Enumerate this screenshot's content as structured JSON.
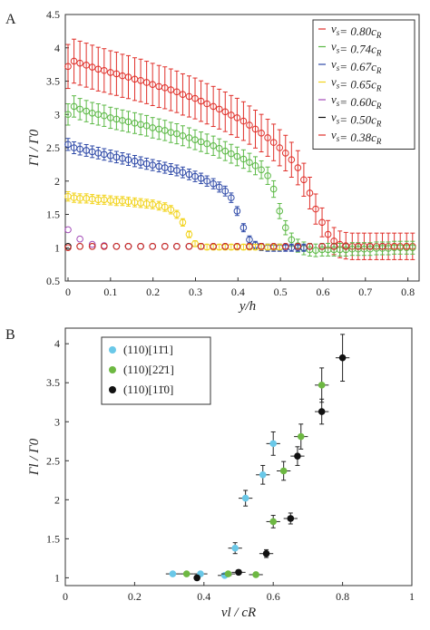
{
  "chart_data": [
    {
      "panel": "A",
      "type": "scatter",
      "xlabel": "y/h",
      "ylabel": "Γl / Γ0",
      "xlim": [
        0,
        0.82
      ],
      "ylim": [
        0.5,
        4.5
      ],
      "xticks": [
        "0",
        "0.1",
        "0.2",
        "0.3",
        "0.4",
        "0.5",
        "0.6",
        "0.7",
        "0.8"
      ],
      "yticks": [
        "0.5",
        "1",
        "1.5",
        "2",
        "2.5",
        "3",
        "3.5",
        "4",
        "4.5"
      ],
      "legend_position": "top-right",
      "series": [
        {
          "name": "vs= 0.80cR",
          "color": "#e0302a",
          "err": 0.33,
          "x": [
            0,
            0.014,
            0.028,
            0.043,
            0.057,
            0.071,
            0.085,
            0.1,
            0.114,
            0.128,
            0.142,
            0.157,
            0.171,
            0.185,
            0.199,
            0.214,
            0.228,
            0.242,
            0.256,
            0.27,
            0.285,
            0.299,
            0.313,
            0.327,
            0.342,
            0.356,
            0.37,
            0.384,
            0.398,
            0.413,
            0.427,
            0.441,
            0.455,
            0.47,
            0.484,
            0.498,
            0.512,
            0.526,
            0.541,
            0.555,
            0.569,
            0.583,
            0.598,
            0.612,
            0.626,
            0.64,
            0.654,
            0.669,
            0.683,
            0.697,
            0.711,
            0.726,
            0.74,
            0.754,
            0.768,
            0.782,
            0.797,
            0.811
          ],
          "y": [
            3.72,
            3.8,
            3.77,
            3.74,
            3.71,
            3.68,
            3.66,
            3.63,
            3.61,
            3.58,
            3.56,
            3.53,
            3.51,
            3.48,
            3.45,
            3.42,
            3.4,
            3.37,
            3.34,
            3.3,
            3.27,
            3.24,
            3.2,
            3.16,
            3.12,
            3.08,
            3.04,
            2.99,
            2.95,
            2.9,
            2.84,
            2.78,
            2.72,
            2.65,
            2.58,
            2.5,
            2.42,
            2.32,
            2.2,
            2.02,
            1.82,
            1.58,
            1.38,
            1.2,
            1.1,
            1.05,
            1.03,
            1.02,
            1.02,
            1.02,
            1.02,
            1.02,
            1.02,
            1.02,
            1.02,
            1.02,
            1.02,
            1.02
          ]
        },
        {
          "name": "vs= 0.74cR",
          "color": "#5cb946",
          "err": 0.16,
          "x": [
            0,
            0.014,
            0.028,
            0.043,
            0.057,
            0.071,
            0.085,
            0.1,
            0.114,
            0.128,
            0.142,
            0.157,
            0.171,
            0.185,
            0.199,
            0.214,
            0.228,
            0.242,
            0.256,
            0.27,
            0.285,
            0.299,
            0.313,
            0.327,
            0.342,
            0.356,
            0.37,
            0.384,
            0.398,
            0.413,
            0.427,
            0.441,
            0.455,
            0.47,
            0.484,
            0.498,
            0.512,
            0.526,
            0.541,
            0.555,
            0.569,
            0.583,
            0.598,
            0.612,
            0.626,
            0.64,
            0.654,
            0.669,
            0.683,
            0.697,
            0.711,
            0.726,
            0.74,
            0.754,
            0.768,
            0.782,
            0.797,
            0.811
          ],
          "y": [
            3.0,
            3.12,
            3.08,
            3.05,
            3.02,
            3.0,
            2.98,
            2.95,
            2.93,
            2.91,
            2.89,
            2.87,
            2.85,
            2.83,
            2.8,
            2.78,
            2.76,
            2.73,
            2.71,
            2.68,
            2.65,
            2.62,
            2.59,
            2.56,
            2.53,
            2.49,
            2.45,
            2.41,
            2.37,
            2.33,
            2.28,
            2.23,
            2.17,
            2.08,
            1.88,
            1.55,
            1.3,
            1.12,
            1.03,
            0.99,
            0.97,
            0.96,
            0.97,
            0.97,
            0.97,
            0.97,
            0.97,
            0.98,
            0.98,
            0.98,
            0.98,
            0.99,
            0.99,
            0.99,
            1.0,
            1.0,
            1.0,
            1.0
          ]
        },
        {
          "name": "vs= 0.67cR",
          "color": "#2f4aa8",
          "err": 0.09,
          "x": [
            0,
            0.014,
            0.028,
            0.043,
            0.057,
            0.071,
            0.085,
            0.1,
            0.114,
            0.128,
            0.142,
            0.157,
            0.171,
            0.185,
            0.199,
            0.214,
            0.228,
            0.242,
            0.256,
            0.27,
            0.285,
            0.299,
            0.313,
            0.327,
            0.342,
            0.356,
            0.37,
            0.384,
            0.398,
            0.413,
            0.427,
            0.441,
            0.455,
            0.47,
            0.484,
            0.498,
            0.512,
            0.526,
            0.541,
            0.555
          ],
          "y": [
            2.55,
            2.5,
            2.48,
            2.46,
            2.44,
            2.42,
            2.4,
            2.38,
            2.36,
            2.34,
            2.32,
            2.3,
            2.28,
            2.26,
            2.24,
            2.22,
            2.2,
            2.18,
            2.16,
            2.13,
            2.1,
            2.07,
            2.04,
            2.0,
            1.96,
            1.91,
            1.85,
            1.75,
            1.55,
            1.3,
            1.12,
            1.04,
            1.01,
            1.0,
            1.0,
            1.0,
            1.0,
            1.0,
            1.0,
            1.0
          ]
        },
        {
          "name": "vs= 0.65cR",
          "color": "#f2d31b",
          "err": 0.07,
          "x": [
            0,
            0.014,
            0.028,
            0.043,
            0.057,
            0.071,
            0.085,
            0.1,
            0.114,
            0.128,
            0.142,
            0.157,
            0.171,
            0.185,
            0.199,
            0.214,
            0.228,
            0.242,
            0.256,
            0.27,
            0.285,
            0.299,
            0.313,
            0.327,
            0.342,
            0.356,
            0.37,
            0.384,
            0.398,
            0.413,
            0.427,
            0.441,
            0.455,
            0.47,
            0.484,
            0.498
          ],
          "y": [
            1.77,
            1.75,
            1.74,
            1.74,
            1.73,
            1.72,
            1.72,
            1.71,
            1.7,
            1.7,
            1.69,
            1.68,
            1.67,
            1.66,
            1.65,
            1.63,
            1.61,
            1.57,
            1.5,
            1.38,
            1.2,
            1.06,
            1.02,
            1.01,
            1.01,
            1.01,
            1.01,
            1.01,
            1.01,
            1.01,
            1.01,
            1.01,
            1.01,
            1.01,
            1.01,
            1.01
          ]
        },
        {
          "name": "vs= 0.60cR",
          "color": "#a24ab6",
          "err": 0.0,
          "x": [
            0,
            0.028,
            0.057,
            0.085,
            0.114,
            0.142,
            0.171,
            0.199,
            0.228,
            0.256,
            0.285,
            0.313,
            0.342,
            0.37,
            0.398,
            0.427,
            0.455,
            0.484,
            0.512,
            0.541,
            0.569,
            0.598,
            0.626,
            0.654
          ],
          "y": [
            1.27,
            1.13,
            1.05,
            1.03,
            1.02,
            1.02,
            1.02,
            1.02,
            1.02,
            1.02,
            1.02,
            1.02,
            1.02,
            1.02,
            1.02,
            1.02,
            1.02,
            1.02,
            1.02,
            1.02,
            1.02,
            1.02,
            1.02,
            1.02
          ]
        },
        {
          "name": "vs= 0.50cR",
          "color": "#111111",
          "err": 0.0,
          "x": [
            0,
            0.028,
            0.057,
            0.085,
            0.114,
            0.142,
            0.171,
            0.199,
            0.228,
            0.256,
            0.285,
            0.313,
            0.342,
            0.37,
            0.398,
            0.427,
            0.455,
            0.484,
            0.512,
            0.541,
            0.569,
            0.598,
            0.626,
            0.654,
            0.683,
            0.711,
            0.74
          ],
          "y": [
            1.02,
            1.02,
            1.02,
            1.02,
            1.02,
            1.02,
            1.02,
            1.02,
            1.02,
            1.02,
            1.02,
            1.02,
            1.02,
            1.02,
            1.02,
            1.02,
            1.02,
            1.02,
            1.02,
            1.02,
            1.02,
            1.02,
            1.02,
            1.02,
            1.02,
            1.02,
            1.02
          ]
        },
        {
          "name": "vs= 0.38cR",
          "color": "#e0302a",
          "err": 0.0,
          "x": [
            0,
            0.028,
            0.057,
            0.085,
            0.114,
            0.142,
            0.171,
            0.199,
            0.228,
            0.256,
            0.285,
            0.313,
            0.342,
            0.37,
            0.398,
            0.427,
            0.455,
            0.484,
            0.512,
            0.541,
            0.569,
            0.598,
            0.626,
            0.654,
            0.683,
            0.711,
            0.74,
            0.768,
            0.797
          ],
          "y": [
            1.0,
            1.02,
            1.02,
            1.02,
            1.02,
            1.02,
            1.02,
            1.02,
            1.02,
            1.02,
            1.02,
            1.02,
            1.02,
            1.02,
            1.02,
            1.02,
            1.02,
            1.02,
            1.02,
            1.02,
            1.02,
            1.02,
            1.02,
            1.02,
            1.02,
            1.02,
            1.02,
            1.02,
            1.02
          ]
        }
      ]
    },
    {
      "panel": "B",
      "type": "scatter",
      "xlabel": "vl / cR",
      "ylabel": "Γl / Γ0",
      "xlim": [
        0,
        1
      ],
      "ylim": [
        0.9,
        4.2
      ],
      "xticks": [
        "0",
        "0.2",
        "0.4",
        "0.6",
        "0.8",
        "1"
      ],
      "yticks": [
        "1",
        "1.5",
        "2",
        "2.5",
        "3",
        "3.5",
        "4"
      ],
      "legend_position": "top-left",
      "series": [
        {
          "name": "(110)[11̄1]",
          "color": "#6ac8e8",
          "points": [
            {
              "x": 0.31,
              "y": 1.05,
              "ex": 0.02,
              "ey": 0.02
            },
            {
              "x": 0.39,
              "y": 1.05,
              "ex": 0.02,
              "ey": 0.02
            },
            {
              "x": 0.46,
              "y": 1.03,
              "ex": 0.02,
              "ey": 0.02
            },
            {
              "x": 0.49,
              "y": 1.38,
              "ex": 0.02,
              "ey": 0.07
            },
            {
              "x": 0.52,
              "y": 2.02,
              "ex": 0.02,
              "ey": 0.1
            },
            {
              "x": 0.57,
              "y": 2.32,
              "ex": 0.02,
              "ey": 0.12
            },
            {
              "x": 0.6,
              "y": 2.72,
              "ex": 0.02,
              "ey": 0.15
            }
          ]
        },
        {
          "name": "(110)[22̄1]",
          "color": "#6db842",
          "points": [
            {
              "x": 0.35,
              "y": 1.05,
              "ex": 0.02,
              "ey": 0.02
            },
            {
              "x": 0.47,
              "y": 1.05,
              "ex": 0.02,
              "ey": 0.02
            },
            {
              "x": 0.55,
              "y": 1.04,
              "ex": 0.02,
              "ey": 0.02
            },
            {
              "x": 0.6,
              "y": 1.72,
              "ex": 0.02,
              "ey": 0.08
            },
            {
              "x": 0.63,
              "y": 2.37,
              "ex": 0.02,
              "ey": 0.12
            },
            {
              "x": 0.68,
              "y": 2.81,
              "ex": 0.02,
              "ey": 0.16
            },
            {
              "x": 0.74,
              "y": 3.47,
              "ex": 0.02,
              "ey": 0.22
            }
          ]
        },
        {
          "name": "(110)[11̄0]",
          "color": "#111111",
          "points": [
            {
              "x": 0.38,
              "y": 1.0,
              "ex": 0.0,
              "ey": 0.02
            },
            {
              "x": 0.5,
              "y": 1.07,
              "ex": 0.02,
              "ey": 0.02
            },
            {
              "x": 0.58,
              "y": 1.31,
              "ex": 0.02,
              "ey": 0.05
            },
            {
              "x": 0.65,
              "y": 1.76,
              "ex": 0.02,
              "ey": 0.07
            },
            {
              "x": 0.67,
              "y": 2.56,
              "ex": 0.02,
              "ey": 0.12
            },
            {
              "x": 0.74,
              "y": 3.13,
              "ex": 0.02,
              "ey": 0.16
            },
            {
              "x": 0.8,
              "y": 3.82,
              "ex": 0.02,
              "ey": 0.3
            }
          ]
        }
      ]
    }
  ]
}
